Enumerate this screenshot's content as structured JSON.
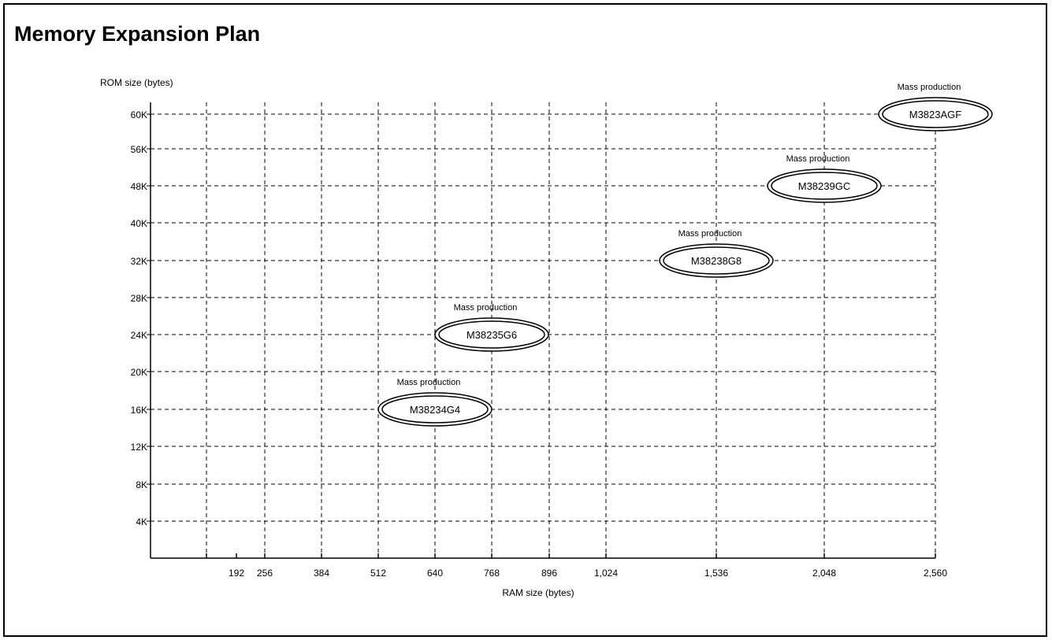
{
  "page": {
    "title": "Memory Expansion Plan"
  },
  "chart_data": {
    "type": "scatter",
    "title": "Memory Expansion Plan",
    "xlabel": "RAM size (bytes)",
    "ylabel": "ROM size (bytes)",
    "x_ticks": [
      {
        "value": 128,
        "label": ""
      },
      {
        "value": 192,
        "label": "192"
      },
      {
        "value": 256,
        "label": "256"
      },
      {
        "value": 384,
        "label": "384"
      },
      {
        "value": 512,
        "label": "512"
      },
      {
        "value": 640,
        "label": "640"
      },
      {
        "value": 768,
        "label": "768"
      },
      {
        "value": 896,
        "label": "896"
      },
      {
        "value": 1024,
        "label": "1,024"
      },
      {
        "value": 1536,
        "label": "1,536"
      },
      {
        "value": 2048,
        "label": "2,048"
      },
      {
        "value": 2560,
        "label": "2,560"
      }
    ],
    "y_ticks": [
      {
        "value": 4,
        "label": "4K"
      },
      {
        "value": 8,
        "label": "8K"
      },
      {
        "value": 12,
        "label": "12K"
      },
      {
        "value": 16,
        "label": "16K"
      },
      {
        "value": 20,
        "label": "20K"
      },
      {
        "value": 24,
        "label": "24K"
      },
      {
        "value": 28,
        "label": "28K"
      },
      {
        "value": 32,
        "label": "32K"
      },
      {
        "value": 40,
        "label": "40K"
      },
      {
        "value": 48,
        "label": "48K"
      },
      {
        "value": 56,
        "label": "56K"
      },
      {
        "value": 60,
        "label": "60K"
      }
    ],
    "grid": true,
    "points": [
      {
        "name": "M38234G4",
        "ram": 640,
        "rom": 16,
        "status": "Mass production"
      },
      {
        "name": "M38235G6",
        "ram": 768,
        "rom": 24,
        "status": "Mass production"
      },
      {
        "name": "M38238G8",
        "ram": 1536,
        "rom": 32,
        "status": "Mass production"
      },
      {
        "name": "M38239GC",
        "ram": 2048,
        "rom": 48,
        "status": "Mass production"
      },
      {
        "name": "M3823AGF",
        "ram": 2560,
        "rom": 60,
        "status": "Mass production"
      }
    ]
  }
}
